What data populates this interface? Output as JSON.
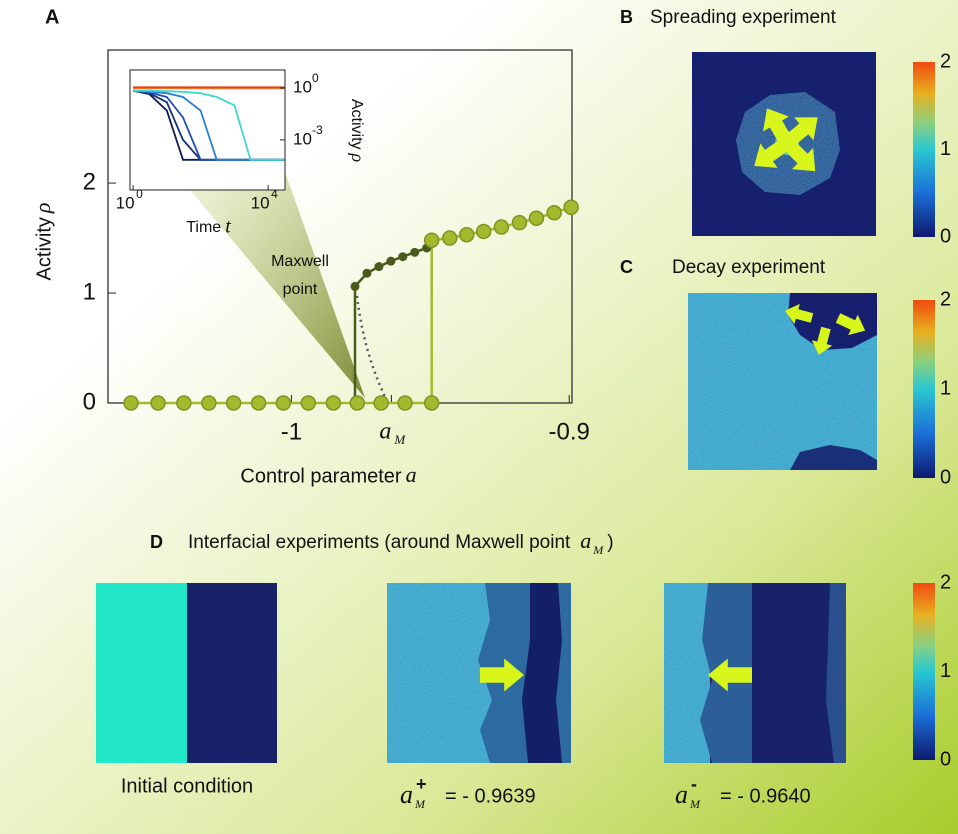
{
  "chart_data": [
    {
      "type": "line",
      "x_label": "Control parameter",
      "x_label_symbol": "a",
      "y_label": "Activity",
      "y_label_symbol": "ρ",
      "annotation": [
        "Maxwell",
        "point"
      ],
      "xlim": [
        -1.066,
        -0.899
      ],
      "ylim": [
        0,
        3.21
      ],
      "xticks": [
        -1,
        {
          "value": -0.964,
          "label": "a",
          "subscript": "M"
        },
        -0.9
      ],
      "yticks": [
        0,
        1,
        2
      ],
      "series": [
        {
          "color": "#a4b92e",
          "x": [
            -1.0577,
            -1.048,
            -1.0387,
            -1.0297,
            -1.0208,
            -1.0118,
            -1.0029,
            -0.9939,
            -0.9849,
            -0.9763,
            -0.9677,
            -0.9591,
            -0.9495,
            -0.9495,
            -0.943,
            -0.9369,
            -0.9308,
            -0.9244,
            -0.9179,
            -0.9118,
            -0.9054,
            -0.8993
          ],
          "values": [
            0,
            0,
            0,
            0,
            0,
            0,
            0,
            0,
            0,
            0,
            0,
            0,
            0,
            1.48,
            1.5,
            1.53,
            1.56,
            1.6,
            1.64,
            1.68,
            1.73,
            1.78
          ]
        },
        {
          "color": "#4b5b1d",
          "x": [
            -0.9771,
            -0.9771,
            -0.9728,
            -0.9685,
            -0.9642,
            -0.9599,
            -0.9556,
            -0.9513
          ],
          "values": [
            0,
            1.06,
            1.18,
            1.24,
            1.29,
            1.33,
            1.37,
            1.41
          ]
        }
      ]
    },
    {
      "type": "line",
      "log_x": true,
      "log_y": true,
      "x_label": "Time",
      "x_label_symbol": "t",
      "y_label": "Activity",
      "y_label_symbol": "ρ",
      "xlim": [
        0.81,
        31600
      ],
      "ylim": [
        1.26e-06,
        11
      ],
      "xticks": [
        {
          "value": 1,
          "label": "10",
          "exponent": "0"
        },
        {
          "value": 10000,
          "label": "10",
          "exponent": "4"
        }
      ],
      "yticks": [
        {
          "value": 1,
          "label": "10",
          "exponent": "0"
        },
        {
          "value": 0.001,
          "label": "10",
          "exponent": "-3"
        }
      ],
      "series": [
        {
          "color": "#0d1a55",
          "x": [
            1,
            3,
            10,
            30,
            100,
            300,
            1000,
            3000,
            10000,
            30000
          ],
          "values": [
            0.7,
            0.45,
            0.05,
            7e-05,
            7e-05,
            7e-05,
            7e-05,
            7e-05,
            7e-05,
            7e-05
          ]
        },
        {
          "color": "#17307a",
          "x": [
            1,
            3,
            10,
            30,
            100,
            300,
            1000,
            3000,
            10000,
            30000
          ],
          "values": [
            0.7,
            0.5,
            0.15,
            0.001,
            7e-05,
            7e-05,
            7e-05,
            7e-05,
            7e-05,
            7e-05
          ]
        },
        {
          "color": "#1f4fb0",
          "x": [
            1,
            3,
            10,
            30,
            100,
            300,
            1000,
            3000,
            10000,
            30000
          ],
          "values": [
            0.7,
            0.55,
            0.3,
            0.02,
            7e-05,
            7e-05,
            7e-05,
            7e-05,
            7e-05,
            7e-05
          ]
        },
        {
          "color": "#2a7fd4",
          "x": [
            1,
            3,
            10,
            30,
            100,
            300,
            1000,
            3000,
            10000,
            30000
          ],
          "values": [
            0.7,
            0.6,
            0.5,
            0.3,
            0.05,
            7e-05,
            7e-05,
            7e-05,
            7e-05,
            7e-05
          ]
        },
        {
          "color": "#3fd9d0",
          "x": [
            1,
            3,
            10,
            30,
            100,
            300,
            1000,
            3000,
            10000,
            30000
          ],
          "values": [
            0.7,
            0.7,
            0.65,
            0.6,
            0.5,
            0.3,
            0.1,
            7e-05,
            7e-05,
            7e-05
          ]
        },
        {
          "color": "#f08030",
          "x": [
            1,
            3,
            10,
            30,
            100,
            300,
            1000,
            3000,
            10000,
            30000
          ],
          "values": [
            0.95,
            0.95,
            0.95,
            0.95,
            0.95,
            0.95,
            0.95,
            0.95,
            0.95,
            0.95
          ]
        },
        {
          "color": "#e8401c",
          "x": [
            1,
            3,
            10,
            30,
            100,
            300,
            1000,
            3000,
            10000,
            30000
          ],
          "values": [
            1.1,
            1.1,
            1.1,
            1.1,
            1.1,
            1.1,
            1.1,
            1.1,
            1.1,
            1.1
          ]
        }
      ]
    }
  ],
  "panels": {
    "A": {
      "label": "A"
    },
    "B": {
      "label": "B",
      "title": "Spreading experiment",
      "colorbar_ticks": [
        0,
        1,
        2
      ]
    },
    "C": {
      "label": "C",
      "title": "Decay experiment",
      "colorbar_ticks": [
        0,
        1,
        2
      ]
    },
    "D": {
      "label": "D",
      "title": "Interfacial experiments (around Maxwell point",
      "title_symbol": "a",
      "title_subscript": "M",
      "title_end": ")",
      "colorbar_ticks": [
        0,
        1,
        2
      ],
      "captions": [
        {
          "text": "Initial condition"
        },
        {
          "symbol": "a",
          "subscript": "M",
          "superscript": "+",
          "text": "= - 0.9639"
        },
        {
          "symbol": "a",
          "subscript": "M",
          "superscript": "-",
          "text": "= - 0.9640"
        }
      ]
    }
  }
}
